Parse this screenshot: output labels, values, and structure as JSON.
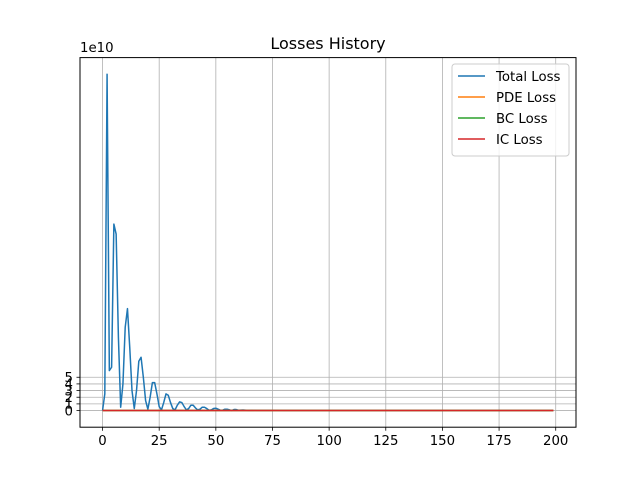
{
  "chart_data": {
    "type": "line",
    "title": "Losses History",
    "xlabel": "",
    "ylabel": "",
    "y_offset_label": "1e10",
    "xlim": [
      -9.95,
      208.95
    ],
    "ylim": [
      -2.5,
      53
    ],
    "xticks": [
      0,
      25,
      50,
      75,
      100,
      125,
      150,
      175,
      200
    ],
    "yticks": [
      0,
      1,
      2,
      3,
      4,
      5
    ],
    "grid": true,
    "legend_position": "top-right",
    "x_max_index": 199,
    "series": [
      {
        "name": "Total Loss",
        "color": "#1f77b4",
        "points": [
          [
            0,
            0.0
          ],
          [
            1,
            2.5
          ],
          [
            2,
            50.5
          ],
          [
            3,
            6.0
          ],
          [
            4,
            6.5
          ],
          [
            5,
            28.0
          ],
          [
            6,
            26.5
          ],
          [
            7,
            11.0
          ],
          [
            8,
            0.5
          ],
          [
            9,
            4.0
          ],
          [
            10,
            12.5
          ],
          [
            11,
            15.3
          ],
          [
            12,
            9.5
          ],
          [
            13,
            3.0
          ],
          [
            14,
            0.3
          ],
          [
            15,
            3.0
          ],
          [
            16,
            7.4
          ],
          [
            17,
            8.0
          ],
          [
            18,
            5.0
          ],
          [
            19,
            1.5
          ],
          [
            20,
            0.2
          ],
          [
            21,
            2.0
          ],
          [
            22,
            4.2
          ],
          [
            23,
            4.2
          ],
          [
            24,
            2.5
          ],
          [
            25,
            0.6
          ],
          [
            26,
            0.1
          ],
          [
            27,
            1.2
          ],
          [
            28,
            2.5
          ],
          [
            29,
            2.3
          ],
          [
            30,
            1.2
          ],
          [
            31,
            0.3
          ],
          [
            32,
            0.1
          ],
          [
            33,
            0.8
          ],
          [
            34,
            1.3
          ],
          [
            35,
            1.2
          ],
          [
            36,
            0.6
          ],
          [
            37,
            0.1
          ],
          [
            38,
            0.3
          ],
          [
            39,
            0.8
          ],
          [
            40,
            0.8
          ],
          [
            41,
            0.4
          ],
          [
            42,
            0.1
          ],
          [
            43,
            0.2
          ],
          [
            44,
            0.5
          ],
          [
            45,
            0.5
          ],
          [
            46,
            0.3
          ],
          [
            47,
            0.05
          ],
          [
            48,
            0.1
          ],
          [
            49,
            0.3
          ],
          [
            50,
            0.35
          ],
          [
            51,
            0.2
          ],
          [
            52,
            0.05
          ],
          [
            53,
            0.05
          ],
          [
            54,
            0.2
          ],
          [
            55,
            0.2
          ],
          [
            56,
            0.1
          ],
          [
            57,
            0.0
          ],
          [
            58,
            0.15
          ],
          [
            59,
            0.15
          ],
          [
            60,
            0.05
          ],
          [
            62,
            0.08
          ],
          [
            64,
            0.03
          ],
          [
            66,
            0.05
          ],
          [
            68,
            0.02
          ],
          [
            70,
            0.03
          ],
          [
            75,
            0.02
          ],
          [
            80,
            0.01
          ],
          [
            90,
            0.0
          ],
          [
            100,
            0.0
          ],
          [
            199,
            0.0
          ]
        ]
      },
      {
        "name": "PDE Loss",
        "color": "#ff7f0e",
        "points": [
          [
            0,
            0.0
          ],
          [
            199,
            0.0
          ]
        ]
      },
      {
        "name": "BC Loss",
        "color": "#2ca02c",
        "points": [
          [
            0,
            0.0
          ],
          [
            199,
            0.0
          ]
        ]
      },
      {
        "name": "IC Loss",
        "color": "#d62728",
        "points": [
          [
            0,
            0.0
          ],
          [
            199,
            0.0
          ]
        ]
      }
    ]
  }
}
